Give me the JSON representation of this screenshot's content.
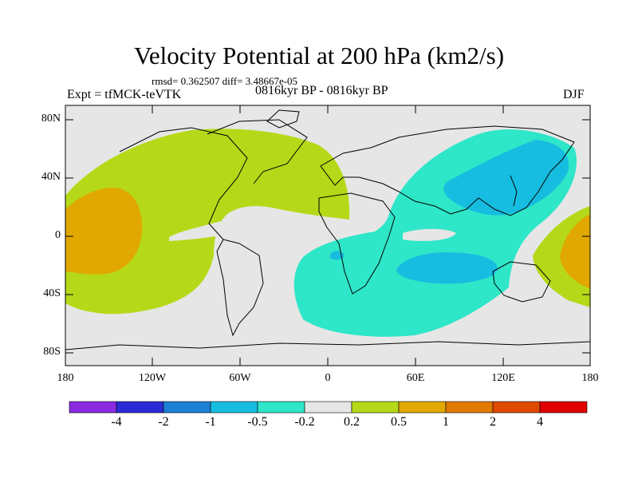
{
  "title": "Velocity Potential at 200 hPa (km2/s)",
  "stats": "rmsd= 0.362507 diff= 3.48667e-05",
  "left_label": "Expt = tfMCK-teVTK",
  "center_label": "0816kyr BP - 0816kyr BP",
  "right_label": "DJF",
  "lat_labels": [
    "80N",
    "40N",
    "0",
    "40S",
    "80S"
  ],
  "lon_labels": [
    "180",
    "120W",
    "60W",
    "0",
    "60E",
    "120E",
    "180"
  ],
  "colorbar": {
    "colors": [
      "#8a2be2",
      "#2b2bd6",
      "#1e7fd6",
      "#16bde0",
      "#2ee6c8",
      "#e6e6e6",
      "#b5d918",
      "#e0a800",
      "#e07a00",
      "#e04a00",
      "#e00000"
    ],
    "labels": [
      "-4",
      "-2",
      "-1",
      "-0.5",
      "-0.2",
      "0.2",
      "0.5",
      "1",
      "2",
      "4"
    ]
  },
  "colors": {
    "background": "#e6e6e6",
    "positive_weak": "#b5d918",
    "positive_mid": "#e0a800",
    "negative_weak": "#2ee6c8",
    "negative_mid": "#16bde0"
  }
}
